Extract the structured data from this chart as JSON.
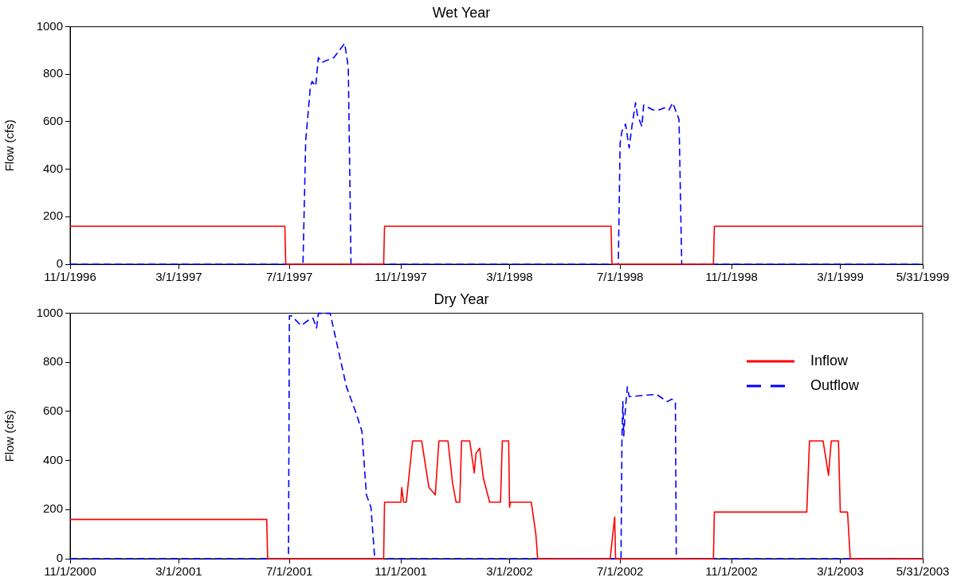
{
  "chart_data": [
    {
      "type": "line",
      "title": "Wet Year",
      "ylabel": "Flow (cfs)",
      "xlim": [
        "1996-11-01",
        "1999-05-31"
      ],
      "ylim": [
        0,
        1000
      ],
      "yticks": [
        0,
        200,
        400,
        600,
        800,
        1000
      ],
      "xticks": [
        {
          "value": "1996-11-01",
          "label": "11/1/1996"
        },
        {
          "value": "1997-03-01",
          "label": "3/1/1997"
        },
        {
          "value": "1997-07-01",
          "label": "7/1/1997"
        },
        {
          "value": "1997-11-01",
          "label": "11/1/1997"
        },
        {
          "value": "1998-03-01",
          "label": "3/1/1998"
        },
        {
          "value": "1998-07-01",
          "label": "7/1/1998"
        },
        {
          "value": "1998-11-01",
          "label": "11/1/1998"
        },
        {
          "value": "1999-03-01",
          "label": "3/1/1999"
        },
        {
          "value": "1999-05-31",
          "label": "5/31/1999"
        }
      ],
      "grid": false,
      "legend": false,
      "marker": "none",
      "series": [
        {
          "color": "#ff0000",
          "line_style": "solid",
          "x": [
            "1996-11-01",
            "1997-06-26",
            "1997-06-27",
            "1997-10-13",
            "1997-10-14",
            "1998-06-21",
            "1998-06-22",
            "1998-10-12",
            "1998-10-13",
            "1999-05-31"
          ],
          "values": [
            160,
            160,
            0,
            0,
            160,
            160,
            0,
            0,
            160,
            160
          ]
        },
        {
          "color": "#0000ff",
          "line_style": "dashed",
          "x": [
            "1996-11-01",
            "1997-07-16",
            "1997-07-19",
            "1997-07-24",
            "1997-07-26",
            "1997-07-30",
            "1997-08-02",
            "1997-08-06",
            "1997-08-12",
            "1997-08-19",
            "1997-08-25",
            "1997-08-31",
            "1997-09-02",
            "1997-09-04",
            "1997-09-07",
            "1998-06-29",
            "1998-07-01",
            "1998-07-03",
            "1998-07-07",
            "1998-07-11",
            "1998-07-14",
            "1998-07-18",
            "1998-07-20",
            "1998-07-25",
            "1998-07-27",
            "1998-08-01",
            "1998-08-06",
            "1998-08-13",
            "1998-08-20",
            "1998-08-24",
            "1998-08-28",
            "1998-08-31",
            "1998-09-04",
            "1998-09-07",
            "1999-05-31"
          ],
          "values": [
            0,
            0,
            520,
            740,
            770,
            750,
            870,
            850,
            860,
            870,
            900,
            930,
            880,
            830,
            0,
            0,
            510,
            560,
            590,
            490,
            580,
            680,
            630,
            580,
            670,
            660,
            650,
            650,
            660,
            650,
            680,
            650,
            610,
            0,
            0
          ]
        }
      ]
    },
    {
      "type": "line",
      "title": "Dry Year",
      "ylabel": "Flow (cfs)",
      "xlim": [
        "2000-11-01",
        "2003-05-31"
      ],
      "ylim": [
        0,
        1000
      ],
      "yticks": [
        0,
        200,
        400,
        600,
        800,
        1000
      ],
      "xticks": [
        {
          "value": "2000-11-01",
          "label": "11/1/2000"
        },
        {
          "value": "2001-03-01",
          "label": "3/1/2001"
        },
        {
          "value": "2001-07-01",
          "label": "7/1/2001"
        },
        {
          "value": "2001-11-01",
          "label": "11/1/2001"
        },
        {
          "value": "2002-03-01",
          "label": "3/1/2002"
        },
        {
          "value": "2002-07-01",
          "label": "7/1/2002"
        },
        {
          "value": "2002-11-01",
          "label": "11/1/2002"
        },
        {
          "value": "2003-03-01",
          "label": "3/1/2003"
        },
        {
          "value": "2003-05-31",
          "label": "5/31/2003"
        }
      ],
      "grid": false,
      "legend": "top right",
      "marker": "none",
      "series": [
        {
          "name": "Inflow",
          "color": "#ff0000",
          "line_style": "solid",
          "x": [
            "2000-11-01",
            "2001-06-06",
            "2001-06-07",
            "2001-10-13",
            "2001-10-14",
            "2001-11-01",
            "2001-11-02",
            "2001-11-04",
            "2001-11-07",
            "2001-11-14",
            "2001-11-24",
            "2001-11-29",
            "2001-12-02",
            "2001-12-09",
            "2001-12-13",
            "2001-12-23",
            "2001-12-28",
            "2002-01-01",
            "2002-01-05",
            "2002-01-07",
            "2002-01-16",
            "2002-01-21",
            "2002-01-23",
            "2002-01-27",
            "2002-01-31",
            "2002-02-07",
            "2002-02-19",
            "2002-02-21",
            "2002-02-28",
            "2002-03-01",
            "2002-03-02",
            "2002-03-25",
            "2002-03-30",
            "2002-04-01",
            "2002-06-20",
            "2002-06-25",
            "2002-06-26",
            "2002-10-12",
            "2002-10-13",
            "2003-01-23",
            "2003-01-26",
            "2003-02-10",
            "2003-02-16",
            "2003-02-19",
            "2003-02-27",
            "2003-03-01",
            "2003-03-09",
            "2003-03-12",
            "2003-05-31"
          ],
          "values": [
            160,
            160,
            0,
            0,
            230,
            230,
            290,
            230,
            230,
            480,
            480,
            360,
            290,
            260,
            480,
            480,
            310,
            230,
            230,
            480,
            480,
            350,
            430,
            450,
            330,
            230,
            230,
            480,
            480,
            210,
            230,
            230,
            100,
            0,
            0,
            170,
            0,
            0,
            190,
            190,
            480,
            480,
            340,
            480,
            480,
            190,
            190,
            0,
            0
          ]
        },
        {
          "name": "Outflow",
          "color": "#0000ff",
          "line_style": "dashed",
          "x": [
            "2000-11-01",
            "2001-06-30",
            "2001-07-01",
            "2001-07-03",
            "2001-07-14",
            "2001-07-25",
            "2001-07-27",
            "2001-07-31",
            "2001-08-02",
            "2001-08-15",
            "2001-08-24",
            "2001-09-02",
            "2001-09-12",
            "2001-09-19",
            "2001-09-24",
            "2001-09-29",
            "2001-10-03",
            "2001-10-04",
            "2002-07-02",
            "2002-07-03",
            "2002-07-04",
            "2002-07-05",
            "2002-07-07",
            "2002-07-09",
            "2002-07-11",
            "2002-08-10",
            "2002-08-22",
            "2002-08-27",
            "2002-08-31",
            "2002-09-01",
            "2003-05-31"
          ],
          "values": [
            0,
            0,
            990,
            990,
            950,
            980,
            980,
            940,
            1000,
            1000,
            850,
            700,
            600,
            520,
            260,
            210,
            10,
            0,
            0,
            480,
            640,
            500,
            620,
            700,
            660,
            670,
            640,
            650,
            640,
            0,
            0
          ]
        }
      ]
    }
  ]
}
